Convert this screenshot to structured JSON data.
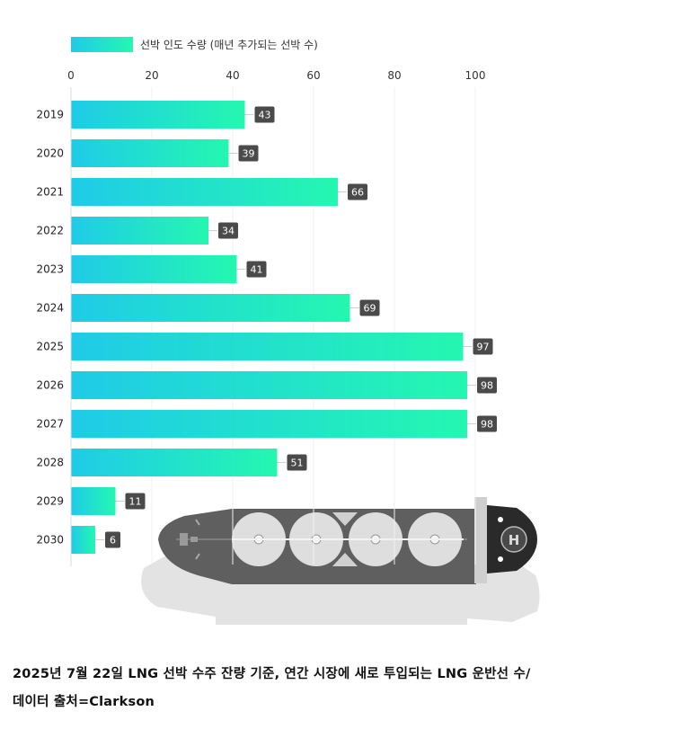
{
  "chart_data": {
    "type": "bar",
    "orientation": "horizontal",
    "categories": [
      "2019",
      "2020",
      "2021",
      "2022",
      "2023",
      "2024",
      "2025",
      "2026",
      "2027",
      "2028",
      "2029",
      "2030"
    ],
    "series": [
      {
        "name": "선박 인도 수량 (매년 추가되는 선박 수)",
        "values": [
          43,
          39,
          66,
          34,
          41,
          69,
          97,
          98,
          98,
          51,
          11,
          6
        ]
      }
    ],
    "xlim": [
      0,
      100
    ],
    "xticks": [
      0,
      20,
      40,
      60,
      80,
      100
    ],
    "grid": true,
    "legend_position": "top-left",
    "colors": {
      "bar_start": "#1fcbe8",
      "bar_end": "#24f7b0",
      "label_bg": "#4a4a4a",
      "label_text": "#ffffff"
    }
  },
  "caption": {
    "line1": "2025년 7월 22일 LNG 선박 수주 잔량 기준, 연간 시장에 새로 투입되는 LNG 운반선 수/",
    "line2": "데이터 출처=Clarkson"
  },
  "illustration": {
    "icon": "lng-carrier-ship-icon"
  }
}
